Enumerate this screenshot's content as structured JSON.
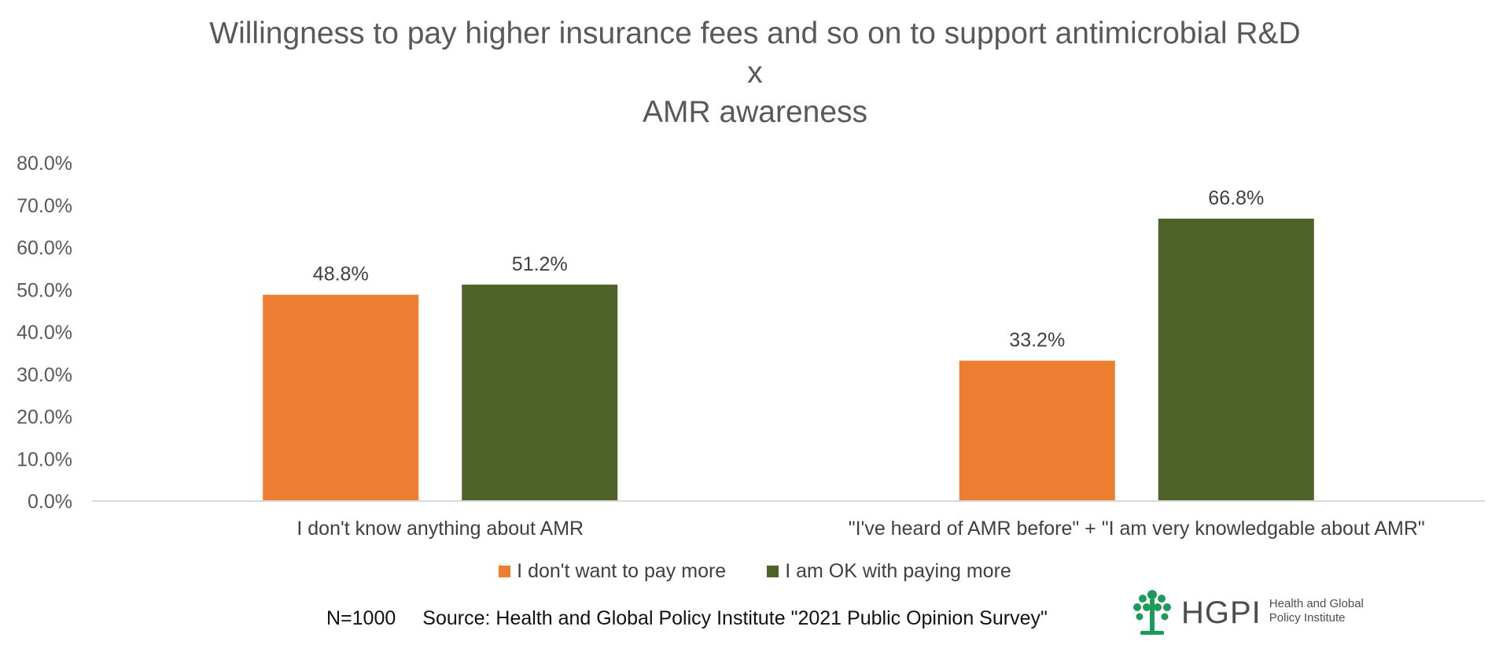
{
  "chart_data": {
    "type": "bar",
    "title": [
      "Willingness to pay higher insurance fees and so on to support antimicrobial R&D",
      "x",
      "AMR awareness"
    ],
    "categories": [
      "I don't know anything about AMR",
      "\"I've heard of AMR before\" + \"I am very knowledgable about AMR\""
    ],
    "series": [
      {
        "name": "I don't want to pay more",
        "values": [
          48.8,
          33.2
        ],
        "labels": [
          "48.8%",
          "33.2%"
        ],
        "color": "#ED7D31"
      },
      {
        "name": "I am OK with paying more",
        "values": [
          51.2,
          66.8
        ],
        "labels": [
          "51.2%",
          "66.8%"
        ],
        "color": "#4F6228"
      }
    ],
    "ylim": [
      0,
      80
    ],
    "yticks": [
      0,
      10,
      20,
      30,
      40,
      50,
      60,
      70,
      80
    ],
    "ytick_labels": [
      "0.0%",
      "10.0%",
      "20.0%",
      "30.0%",
      "40.0%",
      "50.0%",
      "60.0%",
      "70.0%",
      "80.0%"
    ],
    "grid": false,
    "legend_position": "bottom"
  },
  "footer": {
    "n_text": "N=1000",
    "source_text": "Source: Health and Global Policy Institute \"2021 Public Opinion Survey\""
  },
  "logo": {
    "name": "HGPI",
    "sub_line1": "Health and Global",
    "sub_line2": "Policy Institute",
    "color": "#1E9A5A"
  }
}
